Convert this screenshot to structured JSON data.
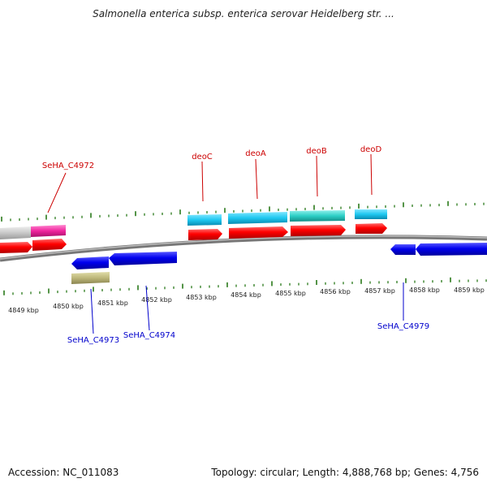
{
  "title": "Salmonella enterica subsp. enterica serovar Heidelberg str. ...",
  "footer": {
    "accession": "Accession: NC_011083",
    "stats": "Topology: circular; Length: 4,888,768 bp; Genes: 4,756"
  },
  "colors": {
    "forward_label": "#cc0000",
    "reverse_label": "#0000cc",
    "tick": "#2a7a1a",
    "backbone": "#777777"
  },
  "kbp_labels": [
    "4849 kbp",
    "4850 kbp",
    "4851 kbp",
    "4852 kbp",
    "4853 kbp",
    "4854 kbp",
    "4855 kbp",
    "4856 kbp",
    "4857 kbp",
    "4858 kbp",
    "4859 kbp"
  ],
  "gene_labels": {
    "forward": [
      "SeHA_C4972",
      "deoC",
      "deoA",
      "deoB",
      "deoD"
    ],
    "reverse": [
      "SeHA_C4973",
      "SeHA_C4974",
      "SeHA_C4979"
    ]
  }
}
